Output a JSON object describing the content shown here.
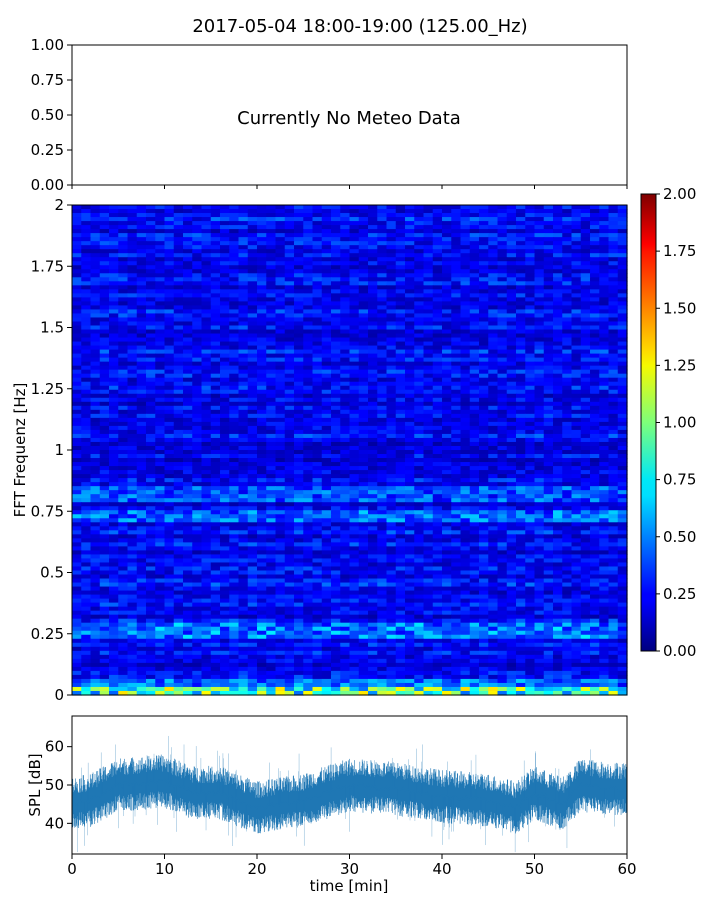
{
  "chart_data": [
    {
      "panel": "meteo",
      "type": "line",
      "title": "2017-05-04 18:00-19:00 (125.00_Hz)",
      "message": "Currently No Meteo Data",
      "ylim": [
        0,
        1
      ],
      "yticks": [
        "0.00",
        "0.25",
        "0.50",
        "0.75",
        "1.00"
      ],
      "xlim": [
        0,
        60
      ],
      "series": []
    },
    {
      "panel": "spectrogram",
      "type": "heatmap",
      "ylabel": "FFT Frequenz [Hz]",
      "ylim": [
        0,
        2
      ],
      "yticks": [
        "0",
        "0.25",
        "0.5",
        "0.75",
        "1",
        "1.25",
        "1.5",
        "1.75",
        "2"
      ],
      "xlim": [
        0,
        60
      ],
      "colormap": "jet",
      "colorbar": {
        "range": [
          0,
          2
        ],
        "ticks": [
          "0.00",
          "0.25",
          "0.50",
          "0.75",
          "1.00",
          "1.25",
          "1.50",
          "1.75",
          "2.00"
        ]
      },
      "bands": [
        {
          "freq": 0.0,
          "level": 1.1
        },
        {
          "freq": 0.03,
          "level": 0.55
        },
        {
          "freq": 0.26,
          "level": 0.6
        },
        {
          "freq": 0.73,
          "level": 0.55
        },
        {
          "freq": 0.82,
          "level": 0.5
        }
      ],
      "background_level": 0.3
    },
    {
      "panel": "spl",
      "type": "line",
      "xlabel": "time [min]",
      "ylabel": "SPL [dB]",
      "xlim": [
        0,
        60
      ],
      "ylim": [
        32,
        68
      ],
      "xticks": [
        "0",
        "10",
        "20",
        "30",
        "40",
        "50",
        "60"
      ],
      "yticks": [
        "40",
        "50",
        "60"
      ],
      "color": "#1f77b4",
      "mean_trend": {
        "x": [
          0,
          2,
          5,
          10,
          13,
          16,
          18,
          20,
          25,
          30,
          35,
          40,
          45,
          48,
          50,
          53,
          55,
          58,
          60
        ],
        "y": [
          45,
          46,
          50,
          51,
          48,
          48,
          46,
          44,
          46,
          50,
          49,
          47,
          46,
          44,
          48,
          45,
          50,
          49,
          49
        ]
      },
      "spread": 5
    }
  ]
}
